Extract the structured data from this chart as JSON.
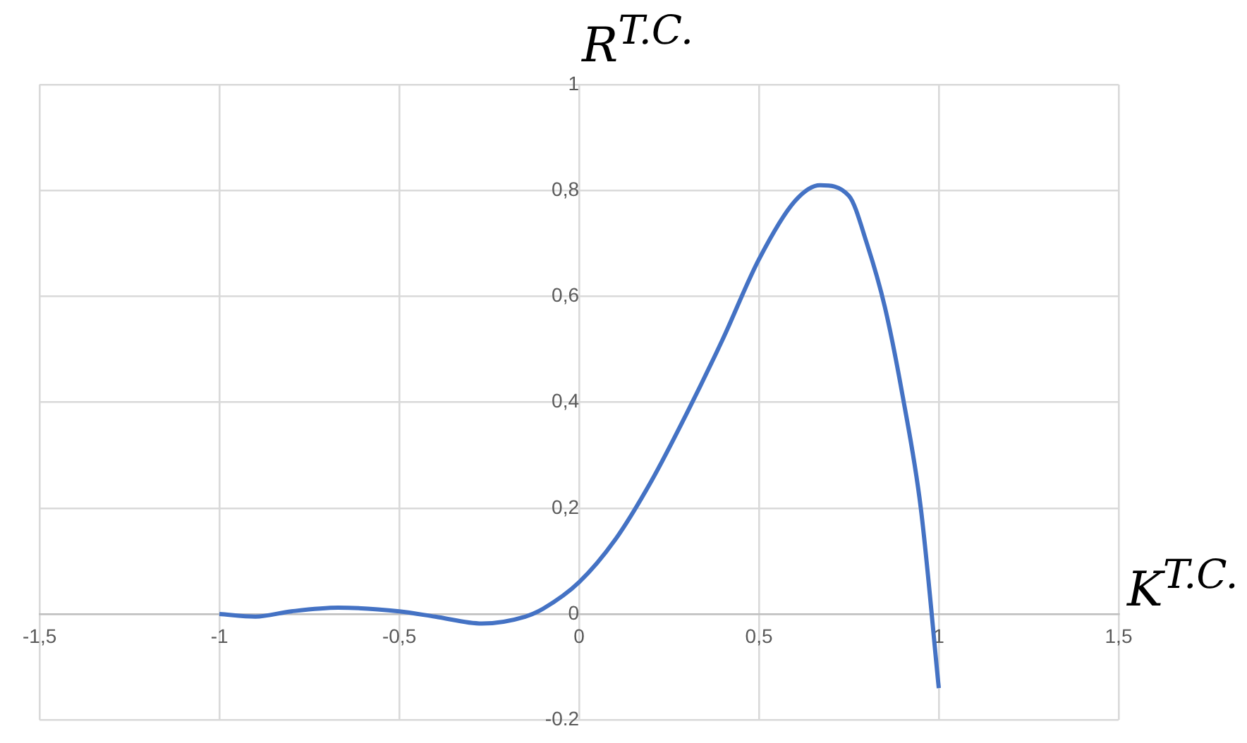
{
  "chart_data": {
    "type": "line",
    "xlabel": "K$^{T.C.}$",
    "ylabel": "R$^{T.C.}$",
    "x": [
      -1,
      -0.9,
      -0.8,
      -0.67,
      -0.5,
      -0.4,
      -0.27,
      -0.15,
      -0.1,
      0,
      0.1,
      0.2,
      0.3,
      0.4,
      0.5,
      0.6,
      0.67,
      0.75,
      0.8,
      0.85,
      0.9,
      0.95,
      1
    ],
    "values": [
      0,
      -0.005,
      0.005,
      0.012,
      0.005,
      -0.005,
      -0.018,
      -0.005,
      0.01,
      0.06,
      0.14,
      0.25,
      0.38,
      0.52,
      0.67,
      0.78,
      0.81,
      0.79,
      0.7,
      0.58,
      0.41,
      0.2,
      -0.14
    ],
    "color": "#4472c4",
    "marker": "none",
    "line_style": "solid",
    "xlim": [
      -1.5,
      1.5
    ],
    "ylim": [
      -0.2,
      1
    ],
    "xticks": [
      {
        "value": -1.5,
        "label": "-1,5"
      },
      -1,
      {
        "value": -0.5,
        "label": "-0,5"
      },
      0,
      {
        "value": 0.5,
        "label": "0,5"
      },
      1,
      {
        "value": 1.5,
        "label": "1,5"
      }
    ],
    "yticks": [
      {
        "value": -0.2,
        "label": "-0.2"
      },
      0,
      {
        "value": 0.2,
        "label": "0,2"
      },
      {
        "value": 0.4,
        "label": "0,4"
      },
      {
        "value": 0.6,
        "label": "0,6"
      },
      {
        "value": 0.8,
        "label": "0,8"
      },
      1
    ],
    "grid": true
  }
}
